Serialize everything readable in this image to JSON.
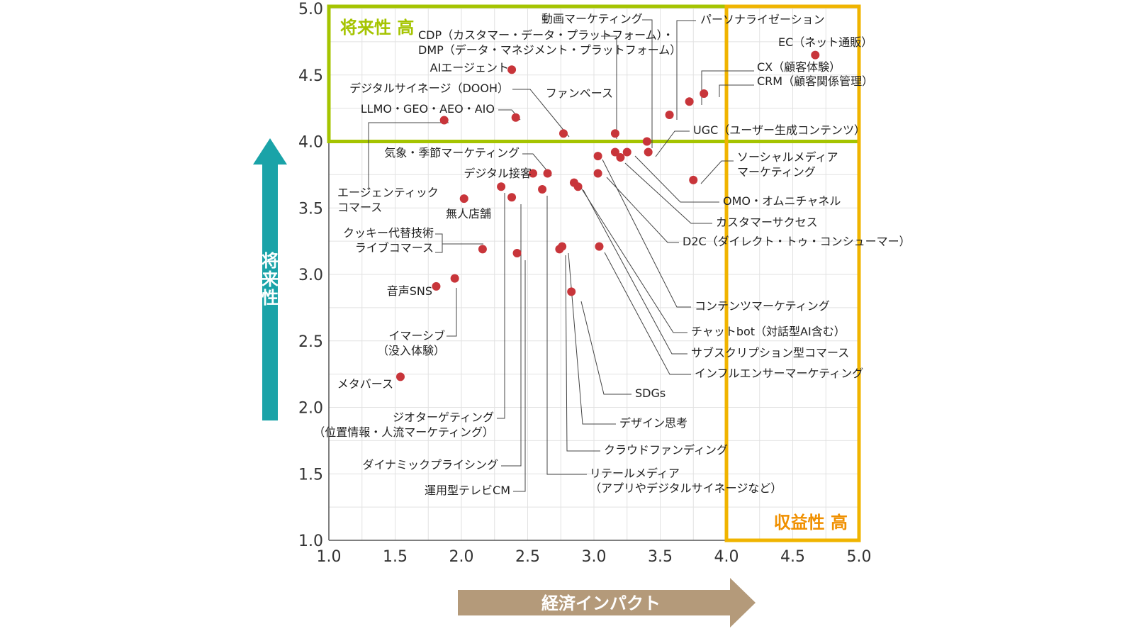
{
  "chart_data": {
    "type": "scatter",
    "xlabel": "経済インパクト",
    "ylabel": "将来性",
    "xlim": [
      1.0,
      5.0
    ],
    "ylim": [
      1.0,
      5.0
    ],
    "x_ticks": [
      "1.0",
      "1.5",
      "2.0",
      "2.5",
      "3.0",
      "3.5",
      "4.0",
      "4.5",
      "5.0"
    ],
    "y_ticks": [
      "1.0",
      "1.5",
      "2.0",
      "2.5",
      "3.0",
      "3.5",
      "4.0",
      "4.5",
      "5.0"
    ],
    "grid": true,
    "point_color": "#c8353a",
    "regions": [
      {
        "label": "将来性 高",
        "color": "#a5c400",
        "x": [
          1.0,
          5.0
        ],
        "y": [
          4.0,
          5.0
        ]
      },
      {
        "label": "収益性 高",
        "color": "#f0b400",
        "x": [
          4.0,
          5.0
        ],
        "y": [
          1.0,
          5.0
        ]
      }
    ],
    "points": [
      {
        "label": "EC（ネット通販）",
        "x": 4.67,
        "y": 4.65
      },
      {
        "label": "CX（顧客体験）",
        "x": 3.72,
        "y": 4.3
      },
      {
        "label": "CRM（顧客関係管理）",
        "x": 3.83,
        "y": 4.36
      },
      {
        "label": "パーソナライゼーション",
        "x": 3.57,
        "y": 4.2
      },
      {
        "label": "動画マーケティング",
        "x": 3.4,
        "y": 4.0
      },
      {
        "label": "CDP（カスタマー・データ・プラットフォーム）・DMP（データ・マネジメント・プラットフォーム）",
        "x": 3.16,
        "y": 4.06
      },
      {
        "label": "AIエージェント",
        "x": 2.38,
        "y": 4.54
      },
      {
        "label": "デジタルサイネージ（DOOH）",
        "x": 2.77,
        "y": 4.06
      },
      {
        "label": "ファンベース",
        "x": 3.16,
        "y": 3.92
      },
      {
        "label": "LLMO・GEO・AEO・AIO",
        "x": 2.41,
        "y": 4.18
      },
      {
        "label": "エージェンティックコマース",
        "x": 1.87,
        "y": 4.16
      },
      {
        "label": "UGC（ユーザー生成コンテンツ）",
        "x": 3.41,
        "y": 3.92
      },
      {
        "label": "ソーシャルメディアマーケティング",
        "x": 3.75,
        "y": 3.71
      },
      {
        "label": "OMO・オムニチャネル",
        "x": 3.25,
        "y": 3.92
      },
      {
        "label": "カスタマーサクセス",
        "x": 3.2,
        "y": 3.88
      },
      {
        "label": "D2C（ダイレクト・トゥ・コンシューマー）",
        "x": 3.03,
        "y": 3.76
      },
      {
        "label": "コンテンツマーケティング",
        "x": 3.03,
        "y": 3.89
      },
      {
        "label": "チャットbot（対話型AI含む）",
        "x": 2.85,
        "y": 3.69
      },
      {
        "label": "サブスクリプション型コマース",
        "x": 2.88,
        "y": 3.66
      },
      {
        "label": "インフルエンサーマーケティング",
        "x": 3.04,
        "y": 3.21
      },
      {
        "label": "気象・季節マーケティング",
        "x": 2.65,
        "y": 3.76
      },
      {
        "label": "デジタル接客",
        "x": 2.54,
        "y": 3.76
      },
      {
        "label": "無人店舗",
        "x": 2.02,
        "y": 3.57
      },
      {
        "label": "クッキー代替技術・ライブコマース",
        "x": 2.16,
        "y": 3.19
      },
      {
        "label": "音声SNS",
        "x": 1.81,
        "y": 2.91
      },
      {
        "label": "イマーシブ（没入体験）",
        "x": 1.95,
        "y": 2.97
      },
      {
        "label": "メタバース",
        "x": 1.54,
        "y": 2.23
      },
      {
        "label": "ジオターゲティング（位置情報・人流マーケティング）",
        "x": 2.3,
        "y": 3.66
      },
      {
        "label": "ダイナミックプライシング",
        "x": 2.38,
        "y": 3.58
      },
      {
        "label": "運用型テレビCM",
        "x": 2.42,
        "y": 3.16
      },
      {
        "label": "リテールメディア（アプリやデジタルサイネージなど）",
        "x": 2.61,
        "y": 3.64
      },
      {
        "label": "SDGs",
        "x": 2.83,
        "y": 2.87
      },
      {
        "label": "デザイン思考",
        "x": 2.76,
        "y": 3.21
      },
      {
        "label": "クラウドファンディング",
        "x": 2.74,
        "y": 3.19
      }
    ]
  }
}
